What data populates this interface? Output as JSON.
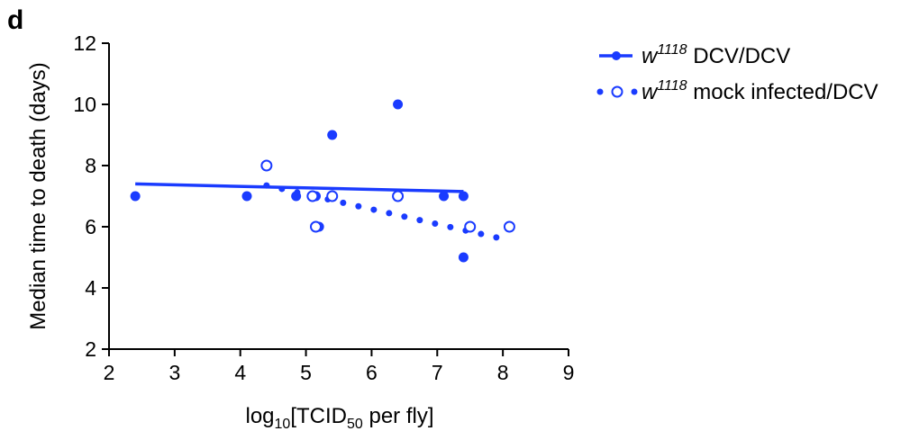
{
  "panel_label": "d",
  "chart_data": {
    "type": "scatter",
    "xlabel": {
      "main": "log",
      "sub1": "10",
      "mid": "[TCID",
      "sub2": "50",
      "tail": " per fly]"
    },
    "ylabel": "Median time to death (days)",
    "xlim": [
      2,
      9
    ],
    "ylim": [
      2,
      12
    ],
    "xticks": [
      "2",
      "3",
      "4",
      "5",
      "6",
      "7",
      "8",
      "9"
    ],
    "yticks": [
      "2",
      "4",
      "6",
      "8",
      "10",
      "12"
    ],
    "color": "#1a3bff",
    "legend_position": "top-right",
    "series": [
      {
        "name": "DCV/DCV",
        "genotype": "w",
        "genotype_sup": "1118",
        "marker": "filled",
        "trendline": "solid",
        "trend": [
          [
            2.4,
            7.4
          ],
          [
            7.4,
            7.15
          ]
        ],
        "points": [
          [
            2.4,
            7
          ],
          [
            4.1,
            7
          ],
          [
            4.85,
            7
          ],
          [
            5.15,
            7
          ],
          [
            5.2,
            6
          ],
          [
            5.4,
            9
          ],
          [
            6.4,
            10
          ],
          [
            7.1,
            7
          ],
          [
            7.4,
            7
          ],
          [
            7.4,
            5
          ]
        ]
      },
      {
        "name": "mock infected/DCV",
        "genotype": "w",
        "genotype_sup": "1118",
        "marker": "open",
        "trendline": "dotted",
        "trend": [
          [
            4.4,
            7.35
          ],
          [
            7.9,
            5.65
          ]
        ],
        "points": [
          [
            4.4,
            8
          ],
          [
            5.1,
            7
          ],
          [
            5.15,
            6
          ],
          [
            5.4,
            7
          ],
          [
            6.4,
            7
          ],
          [
            7.5,
            6
          ],
          [
            8.1,
            6
          ]
        ]
      }
    ]
  }
}
